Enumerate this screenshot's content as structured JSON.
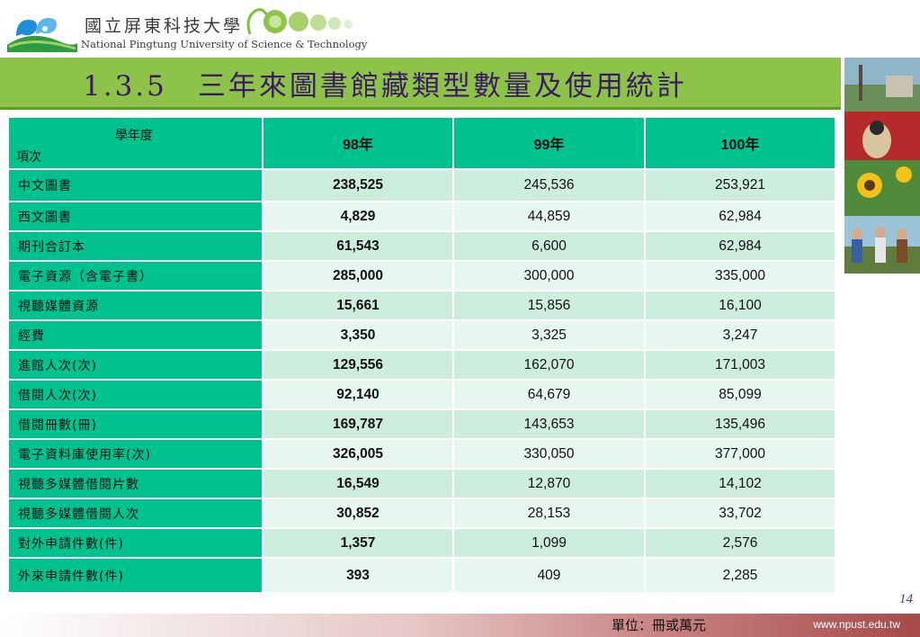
{
  "header": {
    "university_zh": "國立屏東科技大學",
    "university_en": "National Pingtung University of Science & Technology",
    "title": "1.3.5　三年來圖書館藏類型數量及使用統計"
  },
  "table": {
    "corner_top": "學年度",
    "corner_bottom": "項次",
    "columns": [
      "98年",
      "99年",
      "100年"
    ],
    "rows": [
      {
        "label": "中文圖書",
        "values": [
          "238,525",
          "245,536",
          "253,921"
        ]
      },
      {
        "label": "西文圖書",
        "values": [
          "4,829",
          "44,859",
          "62,984"
        ]
      },
      {
        "label": "期刊合訂本",
        "values": [
          "61,543",
          "6,600",
          "62,984"
        ]
      },
      {
        "label": "電子資源（含電子書）",
        "values": [
          "285,000",
          "300,000",
          "335,000"
        ]
      },
      {
        "label": "視聽媒體資源",
        "values": [
          "15,661",
          "15,856",
          "16,100"
        ]
      },
      {
        "label": "經費",
        "values": [
          "3,350",
          "3,325",
          "3,247"
        ]
      },
      {
        "label": "進館人次(次)",
        "values": [
          "129,556",
          "162,070",
          "171,003"
        ]
      },
      {
        "label": "借閱人次(次)",
        "values": [
          "92,140",
          "64,679",
          "85,099"
        ]
      },
      {
        "label": "借閱冊數(冊)",
        "values": [
          "169,787",
          "143,653",
          "135,496"
        ]
      },
      {
        "label": "電子資料庫使用率(次)",
        "values": [
          "326,005",
          "330,050",
          "377,000"
        ]
      },
      {
        "label": "視聽多媒體借閱片數",
        "values": [
          "16,549",
          "12,870",
          "14,102"
        ]
      },
      {
        "label": "視聽多媒體借閱人次",
        "values": [
          "30,852",
          "28,153",
          "33,702"
        ]
      },
      {
        "label": "對外申請件數(件)",
        "values": [
          "1,357",
          "1,099",
          "2,576"
        ]
      },
      {
        "label": "外來申請件數(件)",
        "values": [
          "393",
          "409",
          "2,285"
        ]
      }
    ]
  },
  "footer": {
    "page_number": "14",
    "unit": "單位：冊或萬元",
    "website": "www.npust.edu.tw"
  },
  "colors": {
    "title_bar": "#8cc348",
    "title_text": "#3b1a66",
    "header_cell": "#00c28e",
    "row_odd": "#cdeedd",
    "row_even": "#e7f6ee"
  },
  "icons": {
    "logo": "npust-logo-icon",
    "decoration": "green-circles-icon",
    "photos": "campus-photo-strip"
  }
}
